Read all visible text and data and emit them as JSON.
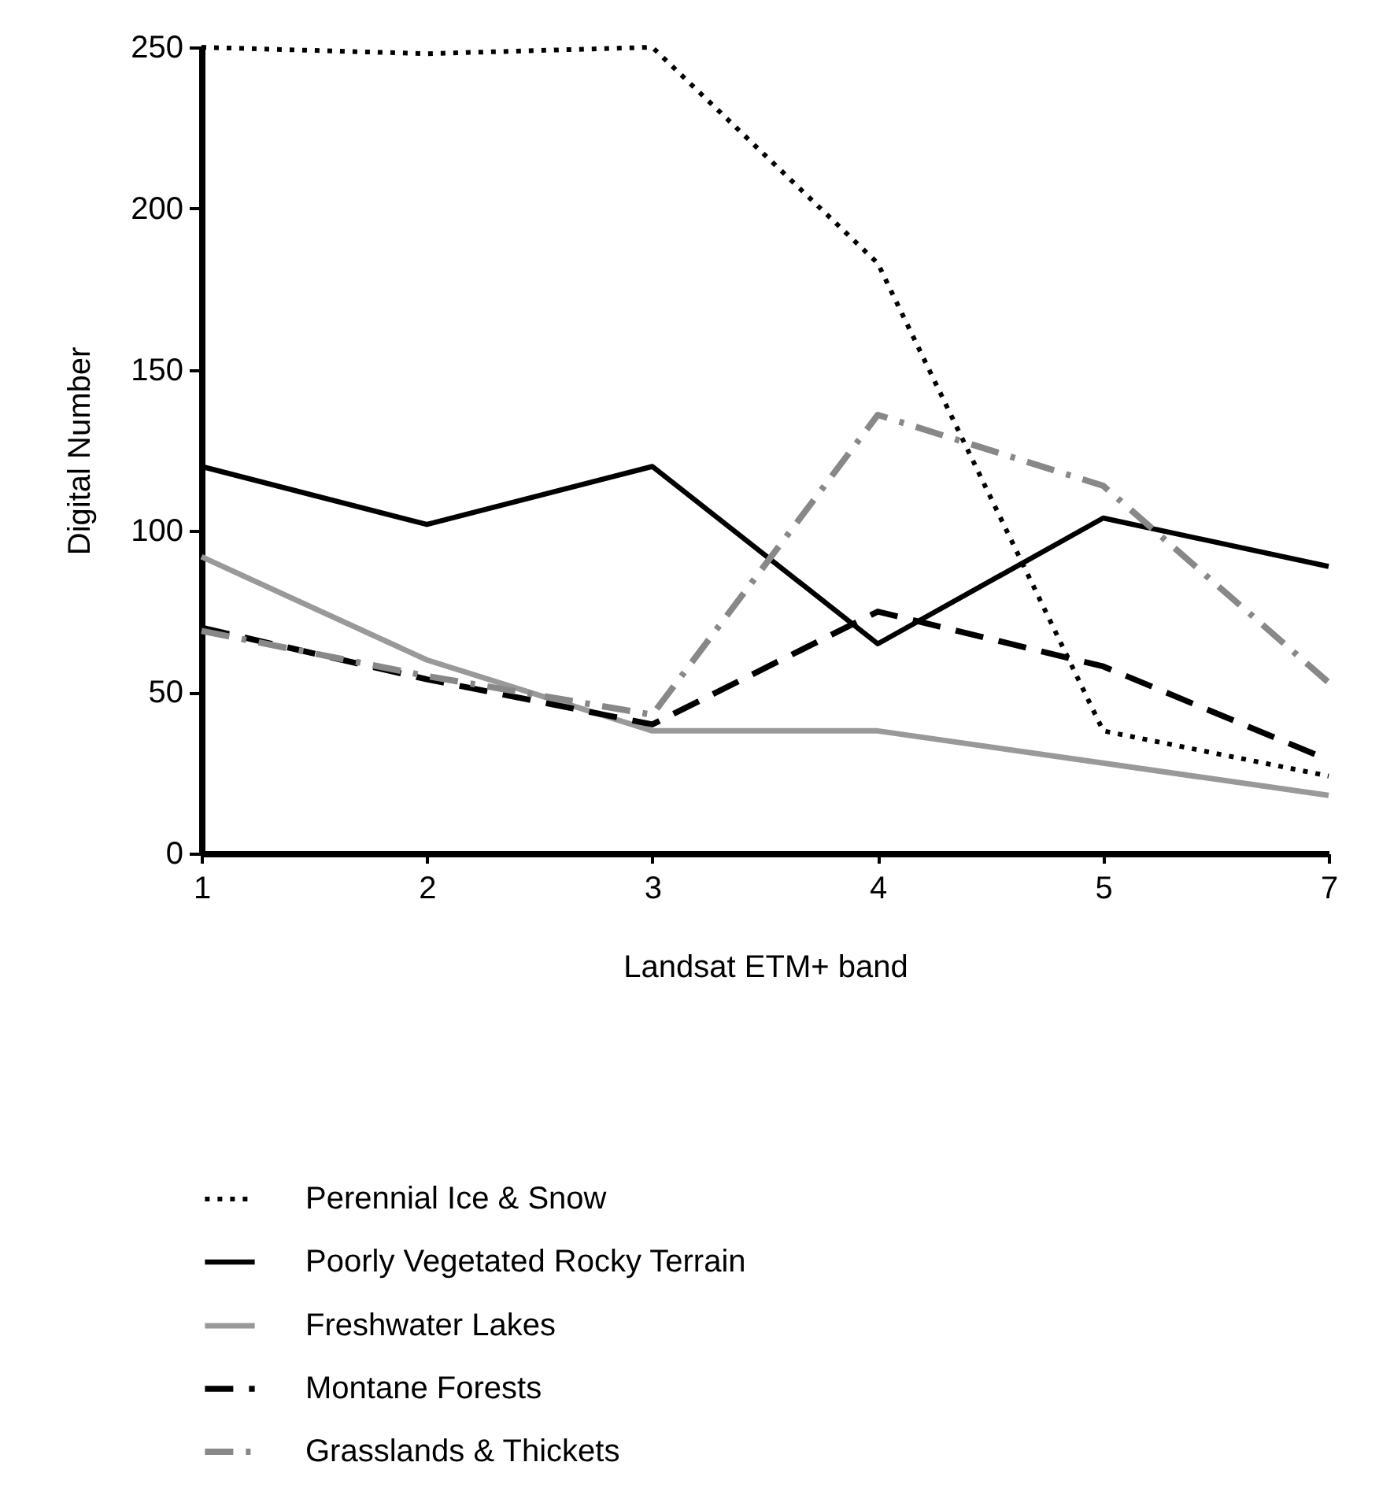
{
  "chart_data": {
    "type": "line",
    "xlabel": "Landsat ETM+ band",
    "ylabel": "Digital Number",
    "categories": [
      "1",
      "2",
      "3",
      "4",
      "5",
      "7"
    ],
    "series": [
      {
        "name": "Perennial Ice & Snow",
        "color": "#000000",
        "line_style": "dotted",
        "values": [
          250,
          248,
          250,
          183,
          38,
          24
        ]
      },
      {
        "name": "Poorly Vegetated Rocky Terrain",
        "color": "#000000",
        "line_style": "solid",
        "values": [
          120,
          102,
          120,
          65,
          104,
          89
        ]
      },
      {
        "name": "Freshwater Lakes",
        "color": "#999999",
        "line_style": "solid",
        "values": [
          92,
          60,
          38,
          38,
          28,
          18
        ]
      },
      {
        "name": "Montane Forests",
        "color": "#000000",
        "line_style": "dashed",
        "values": [
          70,
          54,
          40,
          75,
          58,
          29
        ]
      },
      {
        "name": "Grasslands & Thickets",
        "color": "#888888",
        "line_style": "dashdot",
        "values": [
          69,
          55,
          43,
          136,
          114,
          53
        ]
      }
    ],
    "ylim": [
      0,
      250
    ],
    "yticks": [
      0,
      50,
      100,
      150,
      200,
      250
    ],
    "grid": false,
    "legend": "bottom",
    "marker": "none"
  }
}
